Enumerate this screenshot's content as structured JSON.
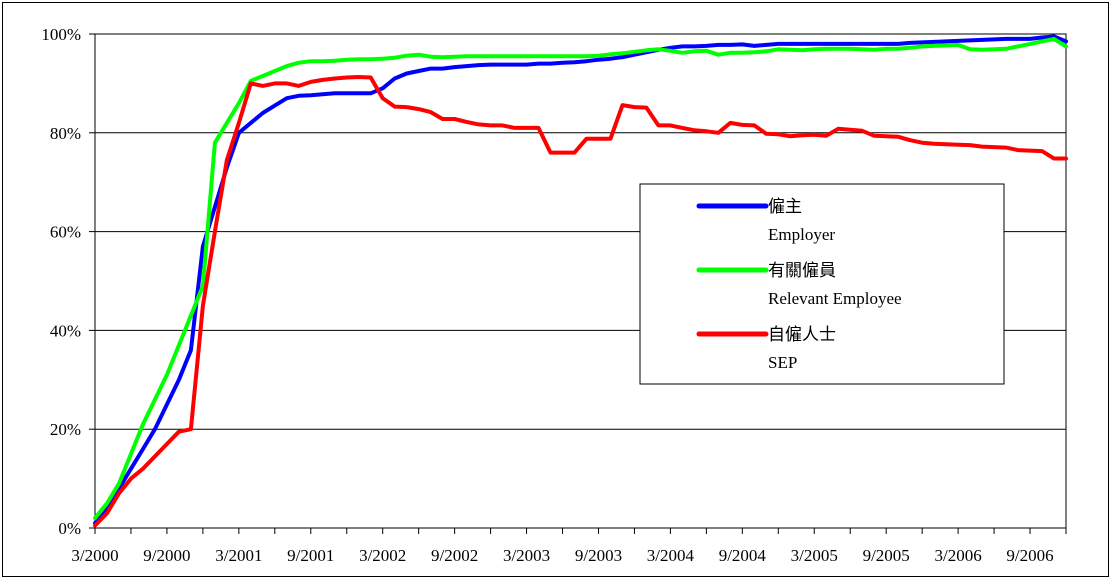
{
  "chart_data": {
    "type": "line",
    "title": "",
    "xlabel": "",
    "ylabel": "",
    "ylim": [
      0,
      100
    ],
    "y_unit": "%",
    "y_ticks": [
      "0%",
      "20%",
      "40%",
      "60%",
      "80%",
      "100%"
    ],
    "x_tick_labels": [
      "3/2000",
      "9/2000",
      "3/2001",
      "9/2001",
      "3/2002",
      "9/2002",
      "3/2003",
      "9/2003",
      "3/2004",
      "9/2004",
      "3/2005",
      "9/2005",
      "3/2006",
      "9/2006"
    ],
    "x_range": [
      "2000-03",
      "2006-12"
    ],
    "grid": "horizontal",
    "legend_position": "right-center",
    "series": [
      {
        "name_zh": "僱主",
        "name_en": "Employer",
        "color": "#0000ff",
        "points": [
          [
            "2000-03",
            1
          ],
          [
            "2000-04",
            4
          ],
          [
            "2000-05",
            8
          ],
          [
            "2000-06",
            12
          ],
          [
            "2000-07",
            16
          ],
          [
            "2000-08",
            20
          ],
          [
            "2000-09",
            25
          ],
          [
            "2000-10",
            30
          ],
          [
            "2000-11",
            36
          ],
          [
            "2000-12",
            57
          ],
          [
            "2001-01",
            65
          ],
          [
            "2001-02",
            73
          ],
          [
            "2001-03",
            80
          ],
          [
            "2001-04",
            82
          ],
          [
            "2001-05",
            84
          ],
          [
            "2001-06",
            85.5
          ],
          [
            "2001-07",
            87
          ],
          [
            "2001-08",
            87.5
          ],
          [
            "2001-09",
            87.6
          ],
          [
            "2001-10",
            87.8
          ],
          [
            "2001-11",
            88
          ],
          [
            "2001-12",
            88
          ],
          [
            "2002-01",
            88
          ],
          [
            "2002-02",
            88
          ],
          [
            "2002-03",
            89
          ],
          [
            "2002-04",
            91
          ],
          [
            "2002-05",
            92
          ],
          [
            "2002-06",
            92.5
          ],
          [
            "2002-07",
            93
          ],
          [
            "2002-08",
            93
          ],
          [
            "2002-09",
            93.3
          ],
          [
            "2002-10",
            93.5
          ],
          [
            "2002-11",
            93.7
          ],
          [
            "2002-12",
            93.8
          ],
          [
            "2003-01",
            93.8
          ],
          [
            "2003-02",
            93.8
          ],
          [
            "2003-03",
            93.8
          ],
          [
            "2003-04",
            94
          ],
          [
            "2003-05",
            94
          ],
          [
            "2003-06",
            94.2
          ],
          [
            "2003-07",
            94.3
          ],
          [
            "2003-08",
            94.5
          ],
          [
            "2003-09",
            94.8
          ],
          [
            "2003-10",
            95
          ],
          [
            "2003-11",
            95.3
          ],
          [
            "2003-12",
            95.8
          ],
          [
            "2004-01",
            96.3
          ],
          [
            "2004-02",
            96.8
          ],
          [
            "2004-03",
            97.2
          ],
          [
            "2004-04",
            97.5
          ],
          [
            "2004-05",
            97.5
          ],
          [
            "2004-06",
            97.6
          ],
          [
            "2004-07",
            97.8
          ],
          [
            "2004-08",
            97.8
          ],
          [
            "2004-09",
            97.9
          ],
          [
            "2004-10",
            97.6
          ],
          [
            "2004-11",
            97.8
          ],
          [
            "2004-12",
            98
          ],
          [
            "2005-01",
            98
          ],
          [
            "2005-02",
            98
          ],
          [
            "2005-03",
            98
          ],
          [
            "2005-04",
            98
          ],
          [
            "2005-05",
            98
          ],
          [
            "2005-06",
            98
          ],
          [
            "2005-07",
            98
          ],
          [
            "2005-08",
            98
          ],
          [
            "2005-09",
            98
          ],
          [
            "2005-10",
            98
          ],
          [
            "2005-11",
            98.2
          ],
          [
            "2005-12",
            98.3
          ],
          [
            "2006-01",
            98.4
          ],
          [
            "2006-02",
            98.5
          ],
          [
            "2006-03",
            98.6
          ],
          [
            "2006-04",
            98.7
          ],
          [
            "2006-05",
            98.8
          ],
          [
            "2006-06",
            98.9
          ],
          [
            "2006-07",
            99
          ],
          [
            "2006-08",
            99
          ],
          [
            "2006-09",
            99
          ],
          [
            "2006-10",
            99.3
          ],
          [
            "2006-11",
            99.5
          ],
          [
            "2006-12",
            98.5
          ]
        ]
      },
      {
        "name_zh": "有關僱員",
        "name_en": "Relevant Employee",
        "color": "#00ff00",
        "points": [
          [
            "2000-03",
            2
          ],
          [
            "2000-04",
            5
          ],
          [
            "2000-05",
            9
          ],
          [
            "2000-06",
            15
          ],
          [
            "2000-07",
            21
          ],
          [
            "2000-08",
            26
          ],
          [
            "2000-09",
            31
          ],
          [
            "2000-10",
            37
          ],
          [
            "2000-11",
            43
          ],
          [
            "2000-12",
            49
          ],
          [
            "2001-01",
            78
          ],
          [
            "2001-02",
            82
          ],
          [
            "2001-03",
            86
          ],
          [
            "2001-04",
            90.5
          ],
          [
            "2001-05",
            91.5
          ],
          [
            "2001-06",
            92.5
          ],
          [
            "2001-07",
            93.5
          ],
          [
            "2001-08",
            94.2
          ],
          [
            "2001-09",
            94.5
          ],
          [
            "2001-10",
            94.5
          ],
          [
            "2001-11",
            94.6
          ],
          [
            "2001-12",
            94.8
          ],
          [
            "2002-01",
            94.9
          ],
          [
            "2002-02",
            94.9
          ],
          [
            "2002-03",
            95
          ],
          [
            "2002-04",
            95.2
          ],
          [
            "2002-05",
            95.6
          ],
          [
            "2002-06",
            95.8
          ],
          [
            "2002-07",
            95.4
          ],
          [
            "2002-08",
            95.3
          ],
          [
            "2002-09",
            95.4
          ],
          [
            "2002-10",
            95.5
          ],
          [
            "2002-11",
            95.5
          ],
          [
            "2002-12",
            95.5
          ],
          [
            "2003-01",
            95.5
          ],
          [
            "2003-02",
            95.5
          ],
          [
            "2003-03",
            95.5
          ],
          [
            "2003-04",
            95.5
          ],
          [
            "2003-05",
            95.5
          ],
          [
            "2003-06",
            95.5
          ],
          [
            "2003-07",
            95.5
          ],
          [
            "2003-08",
            95.5
          ],
          [
            "2003-09",
            95.6
          ],
          [
            "2003-10",
            95.9
          ],
          [
            "2003-11",
            96.1
          ],
          [
            "2003-12",
            96.4
          ],
          [
            "2004-01",
            96.7
          ],
          [
            "2004-02",
            96.9
          ],
          [
            "2004-03",
            96.6
          ],
          [
            "2004-04",
            96.2
          ],
          [
            "2004-05",
            96.5
          ],
          [
            "2004-06",
            96.6
          ],
          [
            "2004-07",
            95.8
          ],
          [
            "2004-08",
            96.2
          ],
          [
            "2004-09",
            96.2
          ],
          [
            "2004-10",
            96.3
          ],
          [
            "2004-11",
            96.5
          ],
          [
            "2004-12",
            96.9
          ],
          [
            "2005-01",
            96.8
          ],
          [
            "2005-02",
            96.7
          ],
          [
            "2005-03",
            96.9
          ],
          [
            "2005-04",
            97
          ],
          [
            "2005-05",
            97
          ],
          [
            "2005-06",
            97
          ],
          [
            "2005-07",
            96.9
          ],
          [
            "2005-08",
            96.8
          ],
          [
            "2005-09",
            97
          ],
          [
            "2005-10",
            97
          ],
          [
            "2005-11",
            97.2
          ],
          [
            "2005-12",
            97.5
          ],
          [
            "2006-01",
            97.6
          ],
          [
            "2006-02",
            97.7
          ],
          [
            "2006-03",
            97.8
          ],
          [
            "2006-04",
            96.9
          ],
          [
            "2006-05",
            96.8
          ],
          [
            "2006-06",
            96.9
          ],
          [
            "2006-07",
            97
          ],
          [
            "2006-08",
            97.5
          ],
          [
            "2006-09",
            98
          ],
          [
            "2006-10",
            98.5
          ],
          [
            "2006-11",
            99
          ],
          [
            "2006-12",
            97.5
          ]
        ]
      },
      {
        "name_zh": "自僱人士",
        "name_en": "SEP",
        "color": "#ff0000",
        "points": [
          [
            "2000-03",
            0.5
          ],
          [
            "2000-04",
            3
          ],
          [
            "2000-05",
            7
          ],
          [
            "2000-06",
            10
          ],
          [
            "2000-07",
            12
          ],
          [
            "2000-08",
            14.5
          ],
          [
            "2000-09",
            17
          ],
          [
            "2000-10",
            19.5
          ],
          [
            "2000-11",
            20
          ],
          [
            "2000-12",
            45
          ],
          [
            "2001-01",
            60
          ],
          [
            "2001-02",
            74.5
          ],
          [
            "2001-03",
            82
          ],
          [
            "2001-04",
            90
          ],
          [
            "2001-05",
            89.5
          ],
          [
            "2001-06",
            90
          ],
          [
            "2001-07",
            90
          ],
          [
            "2001-08",
            89.5
          ],
          [
            "2001-09",
            90.3
          ],
          [
            "2001-10",
            90.7
          ],
          [
            "2001-11",
            91
          ],
          [
            "2001-12",
            91.2
          ],
          [
            "2002-01",
            91.3
          ],
          [
            "2002-02",
            91.2
          ],
          [
            "2002-03",
            87
          ],
          [
            "2002-04",
            85.3
          ],
          [
            "2002-05",
            85.2
          ],
          [
            "2002-06",
            84.8
          ],
          [
            "2002-07",
            84.2
          ],
          [
            "2002-08",
            82.8
          ],
          [
            "2002-09",
            82.8
          ],
          [
            "2002-10",
            82.2
          ],
          [
            "2002-11",
            81.7
          ],
          [
            "2002-12",
            81.5
          ],
          [
            "2003-01",
            81.5
          ],
          [
            "2003-02",
            81
          ],
          [
            "2003-03",
            81
          ],
          [
            "2003-04",
            81
          ],
          [
            "2003-05",
            76
          ],
          [
            "2003-06",
            76
          ],
          [
            "2003-07",
            76
          ],
          [
            "2003-08",
            78.8
          ],
          [
            "2003-09",
            78.8
          ],
          [
            "2003-10",
            78.8
          ],
          [
            "2003-11",
            85.6
          ],
          [
            "2003-12",
            85.2
          ],
          [
            "2004-01",
            85.1
          ],
          [
            "2004-02",
            81.5
          ],
          [
            "2004-03",
            81.5
          ],
          [
            "2004-04",
            81
          ],
          [
            "2004-05",
            80.5
          ],
          [
            "2004-06",
            80.3
          ],
          [
            "2004-07",
            80
          ],
          [
            "2004-08",
            82
          ],
          [
            "2004-09",
            81.6
          ],
          [
            "2004-10",
            81.5
          ],
          [
            "2004-11",
            79.8
          ],
          [
            "2004-12",
            79.7
          ],
          [
            "2005-01",
            79.3
          ],
          [
            "2005-02",
            79.5
          ],
          [
            "2005-03",
            79.6
          ],
          [
            "2005-04",
            79.4
          ],
          [
            "2005-05",
            80.8
          ],
          [
            "2005-06",
            80.6
          ],
          [
            "2005-07",
            80.4
          ],
          [
            "2005-08",
            79.4
          ],
          [
            "2005-09",
            79.3
          ],
          [
            "2005-10",
            79.2
          ],
          [
            "2005-11",
            78.5
          ],
          [
            "2005-12",
            78
          ],
          [
            "2006-01",
            77.8
          ],
          [
            "2006-02",
            77.7
          ],
          [
            "2006-03",
            77.6
          ],
          [
            "2006-04",
            77.5
          ],
          [
            "2006-05",
            77.2
          ],
          [
            "2006-06",
            77.1
          ],
          [
            "2006-07",
            77
          ],
          [
            "2006-08",
            76.5
          ],
          [
            "2006-09",
            76.4
          ],
          [
            "2006-10",
            76.3
          ],
          [
            "2006-11",
            74.8
          ],
          [
            "2006-12",
            74.8
          ]
        ]
      }
    ]
  }
}
